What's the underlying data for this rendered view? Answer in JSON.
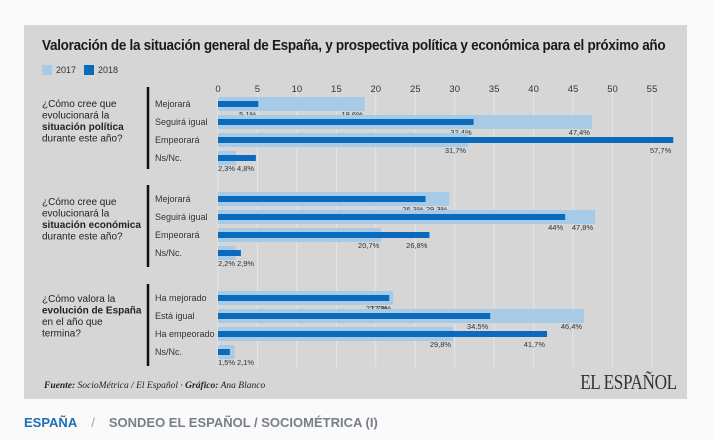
{
  "chart_data": {
    "type": "bar",
    "orientation": "horizontal",
    "title": "Valoración de la situación general de España, y prospectiva política y económica para el próximo año",
    "legend": [
      {
        "name": "2017",
        "color": "#a7cbe6"
      },
      {
        "name": "2018",
        "color": "#0a6bbd"
      }
    ],
    "legend_position": "top-left",
    "x_ticks": [
      0,
      5,
      10,
      15,
      20,
      25,
      30,
      35,
      40,
      45,
      50,
      55
    ],
    "xlim": [
      0,
      58
    ],
    "grid": true,
    "groups": [
      {
        "question_pre": "¿Cómo cree que evolucionará la",
        "question_bold": "situación política",
        "question_post": "durante este año?",
        "categories": [
          "Mejorará",
          "Seguirá igual",
          "Empeorará",
          "Ns/Nc."
        ],
        "series": [
          {
            "name": "2017",
            "values": [
              18.6,
              47.4,
              31.7,
              2.3
            ],
            "labels": [
              "18,6%",
              "47,4%",
              "31,7%",
              "2,3%"
            ]
          },
          {
            "name": "2018",
            "values": [
              5.1,
              32.4,
              57.7,
              4.8
            ],
            "labels": [
              "5,1%",
              "32,4%",
              "57,7%",
              "4,8%"
            ]
          }
        ]
      },
      {
        "question_pre": "¿Cómo cree que evolucionará la",
        "question_bold": "situación económica",
        "question_post": "durante este año?",
        "categories": [
          "Mejorará",
          "Seguirá igual",
          "Empeorará",
          "Ns/Nc."
        ],
        "series": [
          {
            "name": "2017",
            "values": [
              29.3,
              47.8,
              20.7,
              2.2
            ],
            "labels": [
              "29,3%",
              "47,8%",
              "20,7%",
              "2,2%"
            ]
          },
          {
            "name": "2018",
            "values": [
              26.3,
              44,
              26.8,
              2.9
            ],
            "labels": [
              "26,3%",
              "44%",
              "26,8%",
              "2,9%"
            ]
          }
        ]
      },
      {
        "question_pre": "¿Cómo valora la",
        "question_bold": "evolución de España",
        "question_post": "en el año que termina?",
        "categories": [
          "Ha mejorado",
          "Está igual",
          "Ha empeorado",
          "Ns/Nc."
        ],
        "series": [
          {
            "name": "2017",
            "values": [
              22.2,
              46.4,
              29.8,
              2.1
            ],
            "labels": [
              "22,2%",
              "46,4%",
              "29,8%",
              "2,1%"
            ]
          },
          {
            "name": "2018",
            "values": [
              21.7,
              34.5,
              41.7,
              1.5
            ],
            "labels": [
              "21,7%",
              "34,5%",
              "41,7%",
              "1,5%"
            ]
          }
        ]
      }
    ]
  },
  "legend_labels": {
    "y2017": "2017",
    "y2018": "2018"
  },
  "footer": {
    "source_label": "Fuente:",
    "source_text": " SocioMétrica / El Español · ",
    "graphic_label": "Gráfico:",
    "graphic_text": " Ana Blanco",
    "logo": "EL ESPAÑOL"
  },
  "breadcrumb": {
    "section": "ESPAÑA",
    "separator": "/",
    "subsection": "SONDEO EL ESPAÑOL / SOCIOMÉTRICA (I)"
  }
}
